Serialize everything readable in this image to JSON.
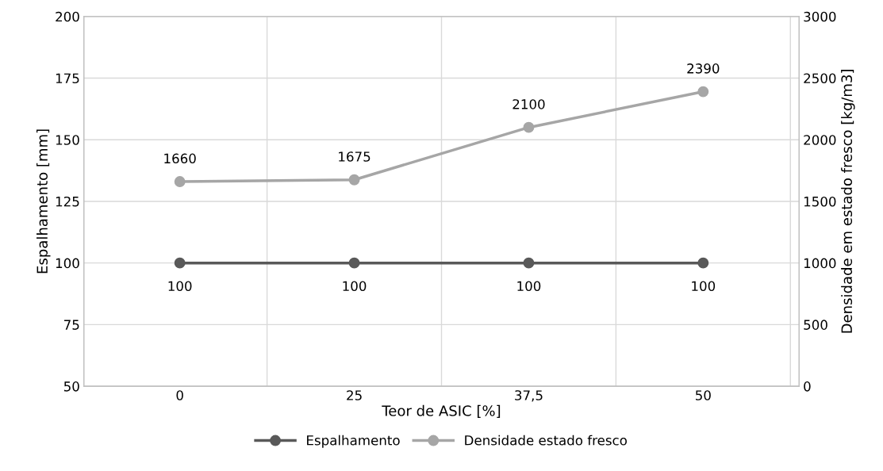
{
  "chart_data": {
    "type": "line",
    "xlabel": "Teor de ASIC [%]",
    "ylabel": "Espalhamento [mm]",
    "y2label": "Densidade em estado fresco [kg/m3]",
    "categories": [
      "0",
      "25",
      "37,5",
      "50"
    ],
    "series": [
      {
        "name": "Espalhamento",
        "color": "#595959",
        "values": [
          100,
          100,
          100,
          100
        ]
      },
      {
        "name": "Densidade estado fresco",
        "color": "#a6a6a6",
        "values": [
          1660,
          1675,
          2100,
          2390
        ],
        "axis": "y2"
      }
    ],
    "ylim": [
      50,
      200
    ],
    "yticks": [
      50,
      75,
      100,
      125,
      150,
      175,
      200
    ],
    "y2lim": [
      0,
      3000
    ],
    "y2ticks": [
      0,
      500,
      1000,
      1500,
      2000,
      2500,
      3000
    ],
    "grid": true,
    "legend": "bottom",
    "marker": "circle",
    "line_style": "solid",
    "data_labels": true
  }
}
